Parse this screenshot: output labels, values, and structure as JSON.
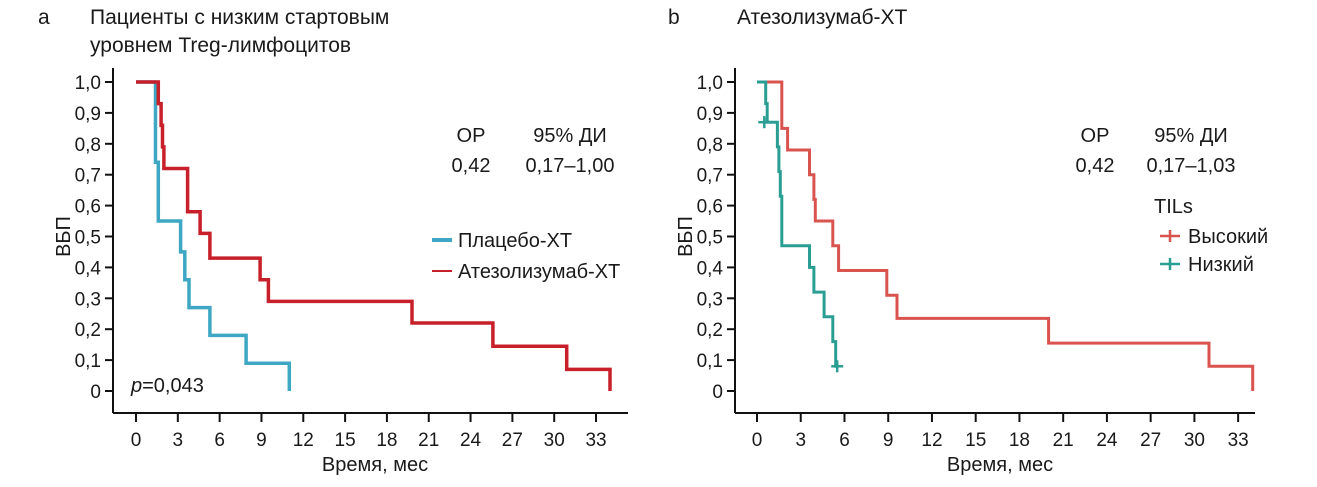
{
  "chart_data": [
    {
      "type": "line",
      "subtype": "kaplan-meier-step",
      "panel": "a",
      "title": [
        "Пациенты с низким стартовым",
        "уровнем Treg-лимфоцитов"
      ],
      "xlabel": "Время, мес",
      "ylabel": "ВБП",
      "xlim": [
        0,
        34
      ],
      "ylim": [
        0,
        1.0
      ],
      "xticks": [
        0,
        3,
        6,
        9,
        12,
        15,
        18,
        21,
        24,
        27,
        30,
        33
      ],
      "xtick_labels": [
        "0",
        "3",
        "6",
        "9",
        "12",
        "15",
        "18",
        "21",
        "24",
        "27",
        "30",
        "33"
      ],
      "yticks": [
        0,
        0.1,
        0.2,
        0.3,
        0.4,
        0.5,
        0.6,
        0.7,
        0.8,
        0.9,
        1.0
      ],
      "ytick_labels": [
        "0",
        "0,1",
        "0,2",
        "0,3",
        "0,4",
        "0,5",
        "0,6",
        "0,7",
        "0,8",
        "0,9",
        "1,0"
      ],
      "grid": false,
      "stats": {
        "hr_label": "ОР",
        "ci_label": "95% ДИ",
        "hr": "0,42",
        "ci": "0,17–1,00"
      },
      "p_value": {
        "prefix": "p",
        "value": "=0,043"
      },
      "legend": {
        "placement": "center-right",
        "title": ""
      },
      "series": [
        {
          "name": "Плацебо-ХТ",
          "color": "#3ea8c4",
          "marker": "line",
          "points": [
            [
              0,
              1.0
            ],
            [
              1.4,
              1.0
            ],
            [
              1.4,
              0.74
            ],
            [
              1.6,
              0.74
            ],
            [
              1.6,
              0.55
            ],
            [
              3.2,
              0.55
            ],
            [
              3.2,
              0.45
            ],
            [
              3.5,
              0.45
            ],
            [
              3.5,
              0.36
            ],
            [
              3.8,
              0.36
            ],
            [
              3.8,
              0.27
            ],
            [
              5.3,
              0.27
            ],
            [
              5.3,
              0.18
            ],
            [
              7.9,
              0.18
            ],
            [
              7.9,
              0.09
            ],
            [
              11.0,
              0.09
            ],
            [
              11.0,
              0.0
            ]
          ]
        },
        {
          "name": "Атезолизумаб-ХТ",
          "color": "#c8202a",
          "marker": "line",
          "points": [
            [
              0,
              1.0
            ],
            [
              1.6,
              1.0
            ],
            [
              1.6,
              0.93
            ],
            [
              1.8,
              0.93
            ],
            [
              1.8,
              0.86
            ],
            [
              1.9,
              0.86
            ],
            [
              1.9,
              0.79
            ],
            [
              2.0,
              0.79
            ],
            [
              2.0,
              0.72
            ],
            [
              3.7,
              0.72
            ],
            [
              3.7,
              0.58
            ],
            [
              4.6,
              0.58
            ],
            [
              4.6,
              0.51
            ],
            [
              5.3,
              0.51
            ],
            [
              5.3,
              0.43
            ],
            [
              8.9,
              0.43
            ],
            [
              8.9,
              0.36
            ],
            [
              9.5,
              0.36
            ],
            [
              9.5,
              0.29
            ],
            [
              19.8,
              0.29
            ],
            [
              19.8,
              0.22
            ],
            [
              25.6,
              0.22
            ],
            [
              25.6,
              0.145
            ],
            [
              30.9,
              0.145
            ],
            [
              30.9,
              0.07
            ],
            [
              34.0,
              0.07
            ],
            [
              34.0,
              0.0
            ]
          ]
        }
      ]
    },
    {
      "type": "line",
      "subtype": "kaplan-meier-step",
      "panel": "b",
      "title": [
        "Атезолизумаб-ХТ"
      ],
      "xlabel": "Время, мес",
      "ylabel": "ВБП",
      "xlim": [
        0,
        34
      ],
      "ylim": [
        0,
        1.0
      ],
      "xticks": [
        0,
        3,
        6,
        9,
        12,
        15,
        18,
        21,
        24,
        27,
        30,
        33
      ],
      "xtick_labels": [
        "0",
        "3",
        "6",
        "9",
        "12",
        "15",
        "18",
        "21",
        "24",
        "27",
        "30",
        "33"
      ],
      "yticks": [
        0,
        0.1,
        0.2,
        0.3,
        0.4,
        0.5,
        0.6,
        0.7,
        0.8,
        0.9,
        1.0
      ],
      "ytick_labels": [
        "0",
        "0,1",
        "0,2",
        "0,3",
        "0,4",
        "0,5",
        "0,6",
        "0,7",
        "0,8",
        "0,9",
        "1,0"
      ],
      "grid": false,
      "stats": {
        "hr_label": "ОР",
        "ci_label": "95% ДИ",
        "hr": "0,42",
        "ci": "0,17–1,03"
      },
      "legend": {
        "placement": "top-right",
        "title": "TILs"
      },
      "series": [
        {
          "name": "Высокий",
          "color": "#d9534f",
          "marker": "plus",
          "points": [
            [
              0,
              1.0
            ],
            [
              1.7,
              1.0
            ],
            [
              1.7,
              0.85
            ],
            [
              2.1,
              0.85
            ],
            [
              2.1,
              0.78
            ],
            [
              3.6,
              0.78
            ],
            [
              3.6,
              0.7
            ],
            [
              3.9,
              0.7
            ],
            [
              3.9,
              0.62
            ],
            [
              4.0,
              0.62
            ],
            [
              4.0,
              0.55
            ],
            [
              5.2,
              0.55
            ],
            [
              5.2,
              0.47
            ],
            [
              5.6,
              0.47
            ],
            [
              5.6,
              0.39
            ],
            [
              8.9,
              0.39
            ],
            [
              8.9,
              0.31
            ],
            [
              9.6,
              0.31
            ],
            [
              9.6,
              0.235
            ],
            [
              20.0,
              0.235
            ],
            [
              20.0,
              0.155
            ],
            [
              31.0,
              0.155
            ],
            [
              31.0,
              0.08
            ],
            [
              34.0,
              0.08
            ],
            [
              34.0,
              0.0
            ]
          ],
          "censored": []
        },
        {
          "name": "Низкий",
          "color": "#2b9e93",
          "marker": "plus",
          "points": [
            [
              0,
              1.0
            ],
            [
              0.6,
              1.0
            ],
            [
              0.6,
              0.93
            ],
            [
              0.7,
              0.93
            ],
            [
              0.7,
              0.87
            ],
            [
              1.4,
              0.87
            ],
            [
              1.4,
              0.79
            ],
            [
              1.5,
              0.79
            ],
            [
              1.5,
              0.71
            ],
            [
              1.6,
              0.71
            ],
            [
              1.6,
              0.63
            ],
            [
              1.7,
              0.63
            ],
            [
              1.7,
              0.47
            ],
            [
              3.6,
              0.47
            ],
            [
              3.6,
              0.4
            ],
            [
              3.9,
              0.4
            ],
            [
              3.9,
              0.32
            ],
            [
              4.6,
              0.32
            ],
            [
              4.6,
              0.24
            ],
            [
              5.2,
              0.24
            ],
            [
              5.2,
              0.16
            ],
            [
              5.4,
              0.16
            ],
            [
              5.4,
              0.08
            ],
            [
              5.5,
              0.08
            ]
          ],
          "censored": [
            [
              0.5,
              0.87
            ],
            [
              5.5,
              0.08
            ]
          ]
        }
      ]
    }
  ],
  "labels": {
    "a_letter": "a",
    "b_letter": "b"
  }
}
